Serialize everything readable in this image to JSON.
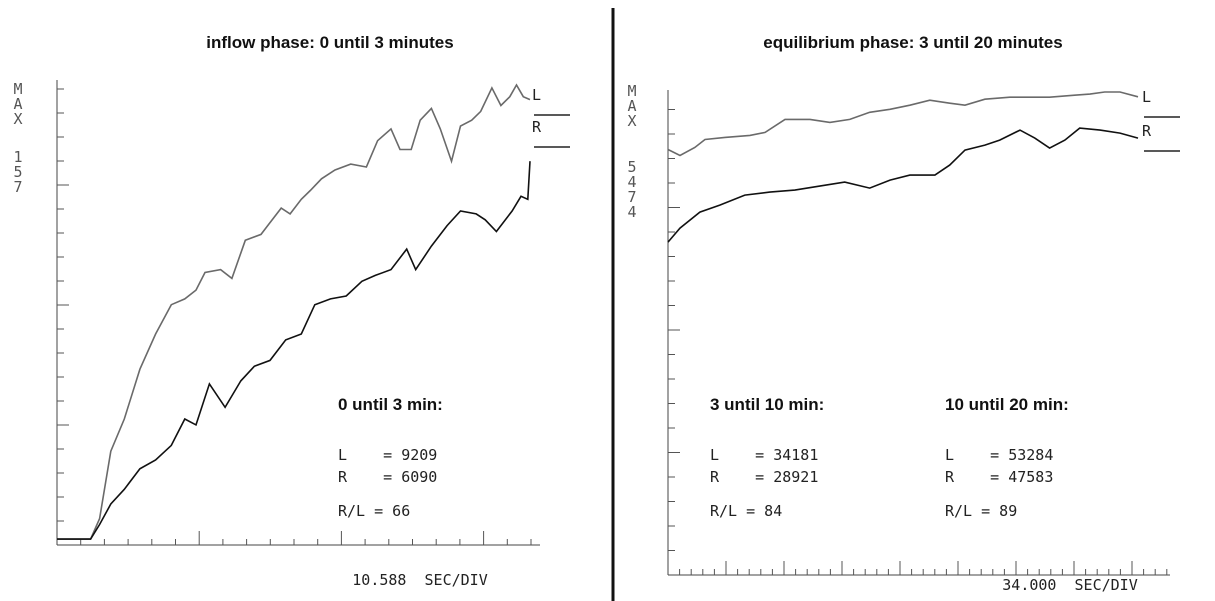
{
  "chart_data": [
    {
      "type": "line",
      "title": "inflow phase: 0 until 3 minutes",
      "y_label": "MAX",
      "y_max_label": "157",
      "x_label": "10.588  SEC/DIV",
      "xlim": [
        0,
        211
      ],
      "ylim": [
        0,
        157
      ],
      "series": [
        {
          "name": "L",
          "color": "#6a6a6a",
          "x": [
            0,
            15,
            19,
            24,
            30,
            37,
            44,
            51,
            57,
            62,
            66,
            73,
            78,
            84,
            91,
            94,
            100,
            104,
            109,
            113,
            118,
            124,
            131,
            138,
            143,
            149,
            153,
            158,
            162,
            167,
            171,
            176,
            180,
            185,
            189,
            194,
            198,
            202,
            205,
            208,
            211
          ],
          "values": [
            2,
            2,
            9,
            32,
            43,
            60,
            72,
            82,
            84,
            87,
            93,
            94,
            91,
            104,
            106,
            109,
            115,
            113,
            118,
            121,
            125,
            128,
            130,
            129,
            138,
            142,
            135,
            135,
            145,
            149,
            142,
            131,
            143,
            145,
            148,
            156,
            150,
            153,
            157,
            153,
            152
          ]
        },
        {
          "name": "R",
          "color": "#111111",
          "x": [
            0,
            15,
            19,
            24,
            30,
            37,
            44,
            51,
            57,
            62,
            68,
            75,
            82,
            88,
            95,
            102,
            109,
            115,
            122,
            129,
            136,
            142,
            149,
            156,
            160,
            167,
            174,
            180,
            187,
            191,
            196,
            203,
            207,
            210,
            211
          ],
          "values": [
            2,
            2,
            7,
            14,
            19,
            26,
            29,
            34,
            43,
            41,
            55,
            47,
            56,
            61,
            63,
            70,
            72,
            82,
            84,
            85,
            90,
            92,
            94,
            101,
            94,
            102,
            109,
            114,
            113,
            111,
            107,
            114,
            119,
            118,
            131
          ]
        }
      ],
      "summaries": [
        {
          "title": "0 until 3 min:",
          "lines": [
            "L    = 9209",
            "R    = 6090",
            "R/L = 66"
          ]
        }
      ]
    },
    {
      "type": "line",
      "title": "equilibrium phase: 3 until 20 minutes",
      "y_label": "MAX",
      "y_max_label": "5474",
      "x_label": "34.000  SEC/DIV",
      "xlim": [
        0,
        1016
      ],
      "ylim": [
        0,
        5474
      ],
      "series": [
        {
          "name": "L",
          "color": "#6a6a6a",
          "x": [
            0,
            26,
            58,
            80,
            123,
            177,
            210,
            253,
            307,
            350,
            393,
            436,
            480,
            523,
            566,
            609,
            642,
            685,
            739,
            825,
            879,
            912,
            944,
            977,
            1016
          ],
          "values": [
            4822,
            4754,
            4845,
            4936,
            4959,
            4982,
            5016,
            5164,
            5164,
            5130,
            5164,
            5244,
            5278,
            5324,
            5381,
            5347,
            5324,
            5392,
            5415,
            5415,
            5438,
            5450,
            5474,
            5474,
            5420
          ]
        },
        {
          "name": "R",
          "color": "#111111",
          "x": [
            0,
            26,
            69,
            112,
            166,
            220,
            274,
            328,
            382,
            436,
            480,
            523,
            577,
            609,
            642,
            685,
            717,
            761,
            793,
            825,
            858,
            890,
            934,
            977,
            1016
          ],
          "values": [
            3773,
            3932,
            4113,
            4192,
            4305,
            4339,
            4362,
            4407,
            4453,
            4385,
            4475,
            4532,
            4532,
            4645,
            4815,
            4872,
            4929,
            5042,
            4951,
            4838,
            4929,
            5065,
            5042,
            5008,
            4951
          ]
        }
      ],
      "summaries": [
        {
          "title": "3 until 10 min:",
          "lines": [
            "L    = 34181",
            "R    = 28921",
            "R/L = 84"
          ]
        },
        {
          "title": "10 until 20 min:",
          "lines": [
            "L    = 53284",
            "R    = 47583",
            "R/L = 89"
          ]
        }
      ]
    }
  ]
}
